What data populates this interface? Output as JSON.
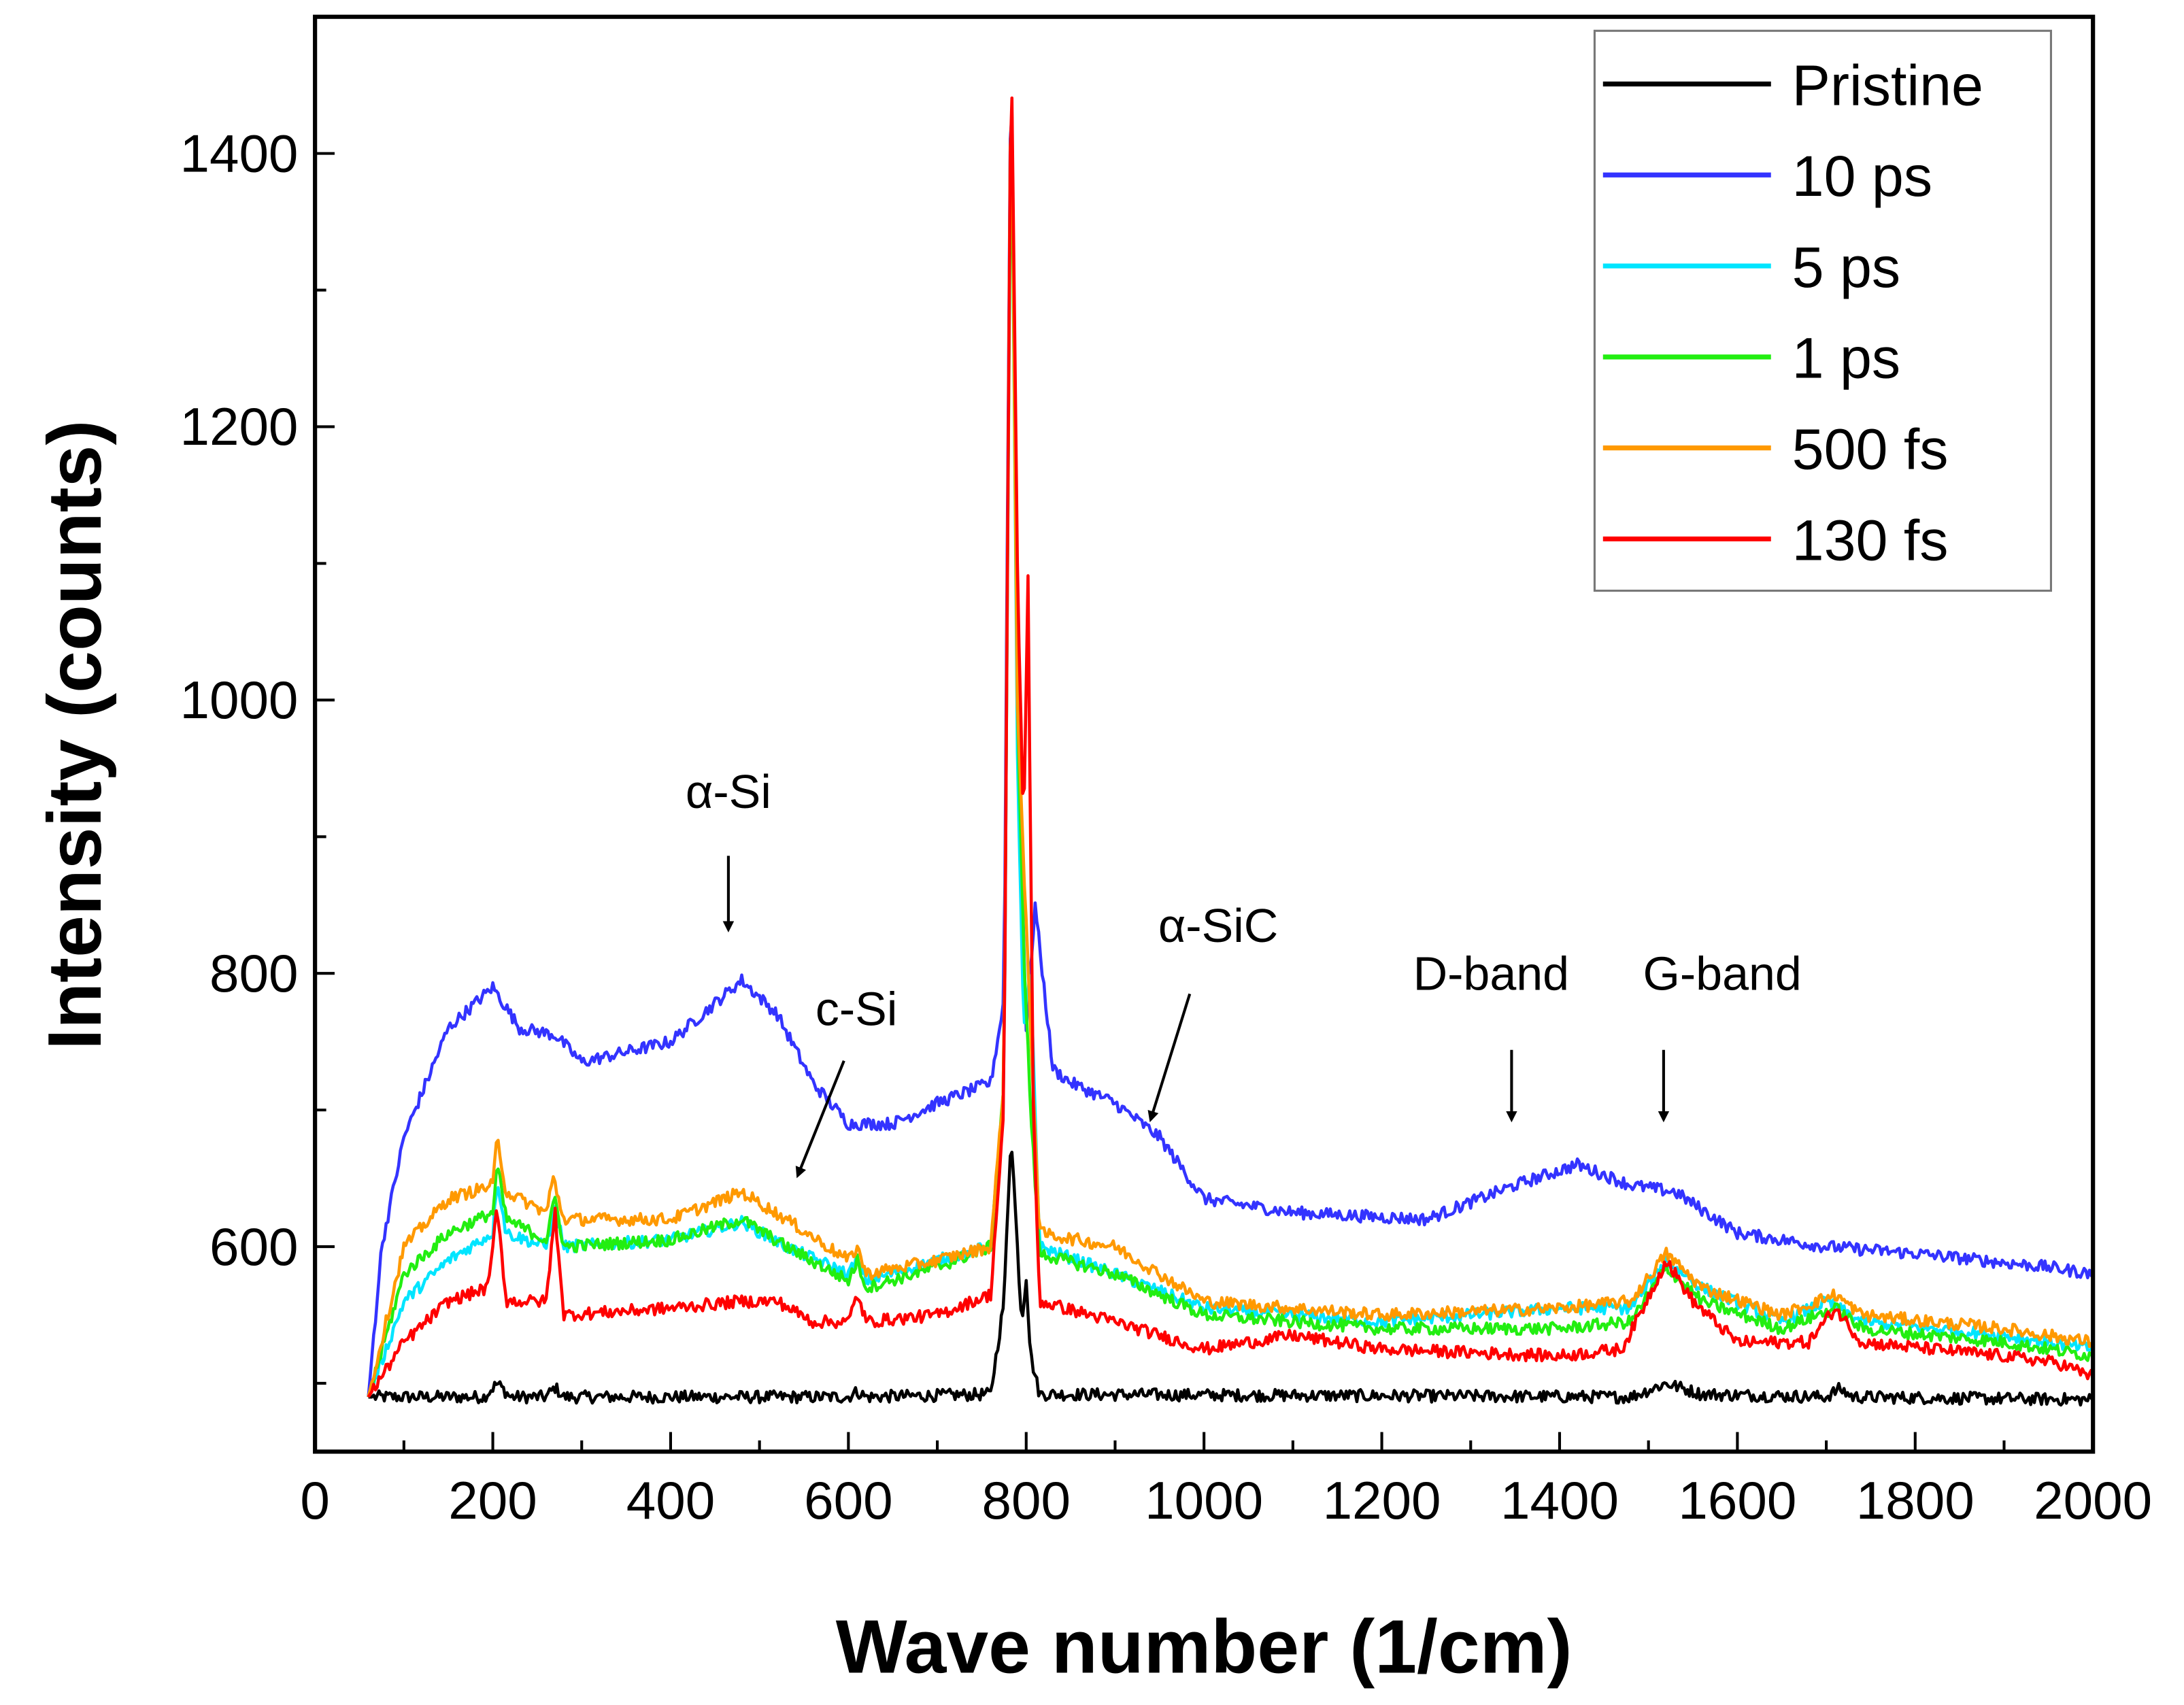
{
  "chart_data": {
    "type": "line",
    "title": "",
    "xlabel": "Wave number (1/cm)",
    "ylabel": "Intensity (counts)",
    "xlim": [
      0,
      2000
    ],
    "ylim": [
      450,
      1500
    ],
    "x_ticks": [
      0,
      200,
      400,
      600,
      800,
      1000,
      1200,
      1400,
      1600,
      1800,
      2000
    ],
    "y_ticks": [
      600,
      800,
      1000,
      1200,
      1400
    ],
    "grid": false,
    "legend_position": "top-right",
    "series": [
      {
        "name": "Pristine",
        "color": "#000000",
        "points": [
          [
            60,
            490
          ],
          [
            190,
            490
          ],
          [
            205,
            500
          ],
          [
            220,
            490
          ],
          [
            260,
            490
          ],
          [
            270,
            497
          ],
          [
            280,
            490
          ],
          [
            600,
            490
          ],
          [
            610,
            494
          ],
          [
            620,
            490
          ],
          [
            760,
            492
          ],
          [
            775,
            560
          ],
          [
            783,
            685
          ],
          [
            790,
            600
          ],
          [
            795,
            545
          ],
          [
            800,
            578
          ],
          [
            805,
            520
          ],
          [
            815,
            492
          ],
          [
            1480,
            490
          ],
          [
            1520,
            500
          ],
          [
            1560,
            492
          ],
          [
            1700,
            490
          ],
          [
            1715,
            496
          ],
          [
            1730,
            490
          ],
          [
            2000,
            488
          ]
        ]
      },
      {
        "name": "10 ps",
        "color": "#3333ff",
        "points": [
          [
            60,
            490
          ],
          [
            75,
            600
          ],
          [
            100,
            680
          ],
          [
            150,
            760
          ],
          [
            200,
            790
          ],
          [
            230,
            760
          ],
          [
            270,
            755
          ],
          [
            300,
            735
          ],
          [
            400,
            750
          ],
          [
            480,
            795
          ],
          [
            520,
            770
          ],
          [
            560,
            720
          ],
          [
            600,
            690
          ],
          [
            650,
            690
          ],
          [
            700,
            705
          ],
          [
            760,
            720
          ],
          [
            775,
            780
          ],
          [
            783,
            1500
          ],
          [
            790,
            1000
          ],
          [
            800,
            760
          ],
          [
            810,
            850
          ],
          [
            830,
            730
          ],
          [
            850,
            720
          ],
          [
            900,
            705
          ],
          [
            950,
            680
          ],
          [
            1000,
            635
          ],
          [
            1100,
            625
          ],
          [
            1250,
            620
          ],
          [
            1350,
            645
          ],
          [
            1420,
            660
          ],
          [
            1480,
            645
          ],
          [
            1530,
            640
          ],
          [
            1600,
            610
          ],
          [
            1700,
            600
          ],
          [
            1800,
            595
          ],
          [
            1950,
            585
          ],
          [
            2000,
            580
          ]
        ]
      },
      {
        "name": "5 ps",
        "color": "#00e5ff",
        "points": [
          [
            60,
            490
          ],
          [
            100,
            560
          ],
          [
            150,
            590
          ],
          [
            200,
            610
          ],
          [
            205,
            650
          ],
          [
            215,
            610
          ],
          [
            260,
            600
          ],
          [
            270,
            630
          ],
          [
            280,
            600
          ],
          [
            400,
            605
          ],
          [
            480,
            618
          ],
          [
            530,
            600
          ],
          [
            600,
            580
          ],
          [
            610,
            590
          ],
          [
            620,
            575
          ],
          [
            700,
            590
          ],
          [
            760,
            600
          ],
          [
            775,
            700
          ],
          [
            783,
            1500
          ],
          [
            790,
            960
          ],
          [
            797,
            760
          ],
          [
            805,
            800
          ],
          [
            815,
            600
          ],
          [
            900,
            580
          ],
          [
            1000,
            555
          ],
          [
            1200,
            545
          ],
          [
            1400,
            555
          ],
          [
            1480,
            555
          ],
          [
            1520,
            590
          ],
          [
            1560,
            570
          ],
          [
            1650,
            545
          ],
          [
            1700,
            560
          ],
          [
            1740,
            545
          ],
          [
            1900,
            535
          ],
          [
            2000,
            525
          ]
        ]
      },
      {
        "name": "1 ps",
        "color": "#22ee11",
        "points": [
          [
            60,
            490
          ],
          [
            100,
            580
          ],
          [
            150,
            610
          ],
          [
            200,
            625
          ],
          [
            205,
            660
          ],
          [
            215,
            620
          ],
          [
            260,
            605
          ],
          [
            270,
            635
          ],
          [
            280,
            600
          ],
          [
            400,
            605
          ],
          [
            480,
            620
          ],
          [
            530,
            600
          ],
          [
            600,
            575
          ],
          [
            610,
            590
          ],
          [
            620,
            570
          ],
          [
            700,
            585
          ],
          [
            760,
            600
          ],
          [
            775,
            720
          ],
          [
            783,
            1460
          ],
          [
            790,
            1000
          ],
          [
            797,
            820
          ],
          [
            805,
            700
          ],
          [
            815,
            595
          ],
          [
            900,
            580
          ],
          [
            1000,
            550
          ],
          [
            1200,
            540
          ],
          [
            1400,
            540
          ],
          [
            1480,
            545
          ],
          [
            1520,
            585
          ],
          [
            1560,
            560
          ],
          [
            1650,
            540
          ],
          [
            1710,
            555
          ],
          [
            1740,
            540
          ],
          [
            1900,
            530
          ],
          [
            2000,
            520
          ]
        ]
      },
      {
        "name": "500 fs",
        "color": "#ff9900",
        "points": [
          [
            60,
            490
          ],
          [
            100,
            600
          ],
          [
            150,
            635
          ],
          [
            200,
            645
          ],
          [
            205,
            680
          ],
          [
            215,
            640
          ],
          [
            260,
            625
          ],
          [
            268,
            650
          ],
          [
            280,
            620
          ],
          [
            400,
            620
          ],
          [
            480,
            640
          ],
          [
            530,
            620
          ],
          [
            600,
            590
          ],
          [
            610,
            600
          ],
          [
            620,
            580
          ],
          [
            700,
            590
          ],
          [
            760,
            600
          ],
          [
            775,
            720
          ],
          [
            783,
            1500
          ],
          [
            790,
            1000
          ],
          [
            797,
            880
          ],
          [
            805,
            760
          ],
          [
            815,
            610
          ],
          [
            900,
            600
          ],
          [
            1000,
            560
          ],
          [
            1200,
            550
          ],
          [
            1400,
            555
          ],
          [
            1480,
            560
          ],
          [
            1520,
            595
          ],
          [
            1560,
            570
          ],
          [
            1650,
            550
          ],
          [
            1710,
            565
          ],
          [
            1740,
            550
          ],
          [
            1900,
            540
          ],
          [
            2000,
            530
          ]
        ]
      },
      {
        "name": "130 fs",
        "color": "#ff0000",
        "points": [
          [
            60,
            490
          ],
          [
            100,
            530
          ],
          [
            150,
            560
          ],
          [
            195,
            570
          ],
          [
            205,
            630
          ],
          [
            215,
            560
          ],
          [
            260,
            560
          ],
          [
            270,
            625
          ],
          [
            280,
            550
          ],
          [
            400,
            555
          ],
          [
            480,
            560
          ],
          [
            520,
            560
          ],
          [
            560,
            545
          ],
          [
            600,
            545
          ],
          [
            610,
            565
          ],
          [
            620,
            545
          ],
          [
            700,
            550
          ],
          [
            760,
            565
          ],
          [
            775,
            700
          ],
          [
            783,
            1500
          ],
          [
            790,
            1100
          ],
          [
            797,
            900
          ],
          [
            802,
            1090
          ],
          [
            808,
            700
          ],
          [
            815,
            560
          ],
          [
            900,
            545
          ],
          [
            1000,
            525
          ],
          [
            1100,
            535
          ],
          [
            1200,
            525
          ],
          [
            1400,
            520
          ],
          [
            1470,
            525
          ],
          [
            1490,
            550
          ],
          [
            1520,
            590
          ],
          [
            1550,
            560
          ],
          [
            1600,
            530
          ],
          [
            1680,
            530
          ],
          [
            1710,
            555
          ],
          [
            1740,
            530
          ],
          [
            1900,
            520
          ],
          [
            1960,
            515
          ],
          [
            2000,
            505
          ]
        ]
      }
    ],
    "annotations": [
      {
        "text": "α-Si",
        "x": 465,
        "y": 921,
        "arrow_from": [
          465,
          886
        ],
        "arrow_to": [
          465,
          832
        ]
      },
      {
        "text": "c-Si",
        "x": 609,
        "y": 762,
        "arrow_from": [
          595,
          736
        ],
        "arrow_to": [
          543,
          652
        ]
      },
      {
        "text": "α-SiC",
        "x": 1016,
        "y": 823,
        "arrow_from": [
          984,
          785
        ],
        "arrow_to": [
          940,
          693
        ]
      },
      {
        "text": "D-band",
        "x": 1323,
        "y": 788,
        "arrow_from": [
          1346,
          744
        ],
        "arrow_to": [
          1346,
          693
        ]
      },
      {
        "text": "G-band",
        "x": 1583,
        "y": 788,
        "arrow_from": [
          1517,
          744
        ],
        "arrow_to": [
          1517,
          693
        ]
      }
    ]
  }
}
